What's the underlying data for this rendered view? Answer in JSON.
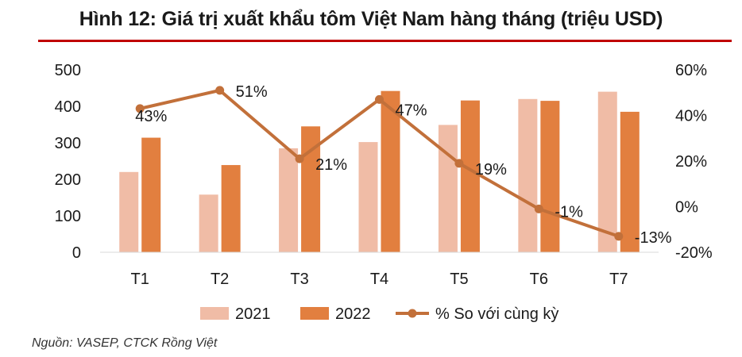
{
  "figure": {
    "title": "Hình 12: Giá trị xuất khẩu tôm Việt Nam hàng tháng (triệu USD)",
    "source": "Nguồn: VASEP, CTCK Rồng Việt"
  },
  "colors": {
    "title_rule": "#c00000",
    "series_2021": "#f0bca6",
    "series_2022": "#e27f3f",
    "series_yoy": "#c2703a"
  },
  "chart_data": {
    "type": "bar",
    "categories": [
      "T1",
      "T2",
      "T3",
      "T4",
      "T5",
      "T6",
      "T7"
    ],
    "series": [
      {
        "name": "2021",
        "type": "bar",
        "axis": "left",
        "values": [
          220,
          158,
          285,
          302,
          349,
          420,
          440
        ]
      },
      {
        "name": "2022",
        "type": "bar",
        "axis": "left",
        "values": [
          314,
          239,
          345,
          442,
          416,
          415,
          385
        ]
      },
      {
        "name": "% So với cùng kỳ",
        "type": "line",
        "axis": "right",
        "values": [
          43,
          51,
          21,
          47,
          19,
          -1,
          -13
        ],
        "labels": [
          "43%",
          "51%",
          "21%",
          "47%",
          "19%",
          "-1%",
          "-13%"
        ]
      }
    ],
    "y_left": {
      "ylim": [
        0,
        500
      ],
      "ticks": [
        "500",
        "400",
        "300",
        "200",
        "100",
        "0"
      ]
    },
    "y_right": {
      "ylim": [
        -20,
        60
      ],
      "ticks": [
        "60%",
        "40%",
        "20%",
        "0%",
        "-20%"
      ]
    },
    "legend": {
      "position": "bottom",
      "entries": [
        "2021",
        "2022",
        "% So với cùng kỳ"
      ]
    },
    "grid": false
  }
}
